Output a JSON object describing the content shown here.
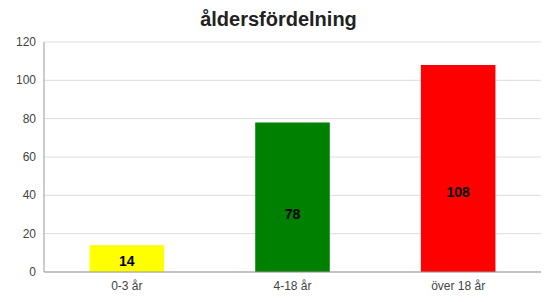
{
  "chart_data": {
    "type": "bar",
    "title": "åldersfördelning",
    "categories": [
      "0-3 år",
      "4-18 år",
      "över 18 år"
    ],
    "values": [
      14,
      78,
      108
    ],
    "colors": [
      "#FFFF00",
      "#008000",
      "#FF0000"
    ],
    "ylim": [
      0,
      120
    ],
    "yticks": [
      0,
      20,
      40,
      60,
      80,
      100,
      120
    ],
    "grid": true,
    "data_labels": true
  }
}
